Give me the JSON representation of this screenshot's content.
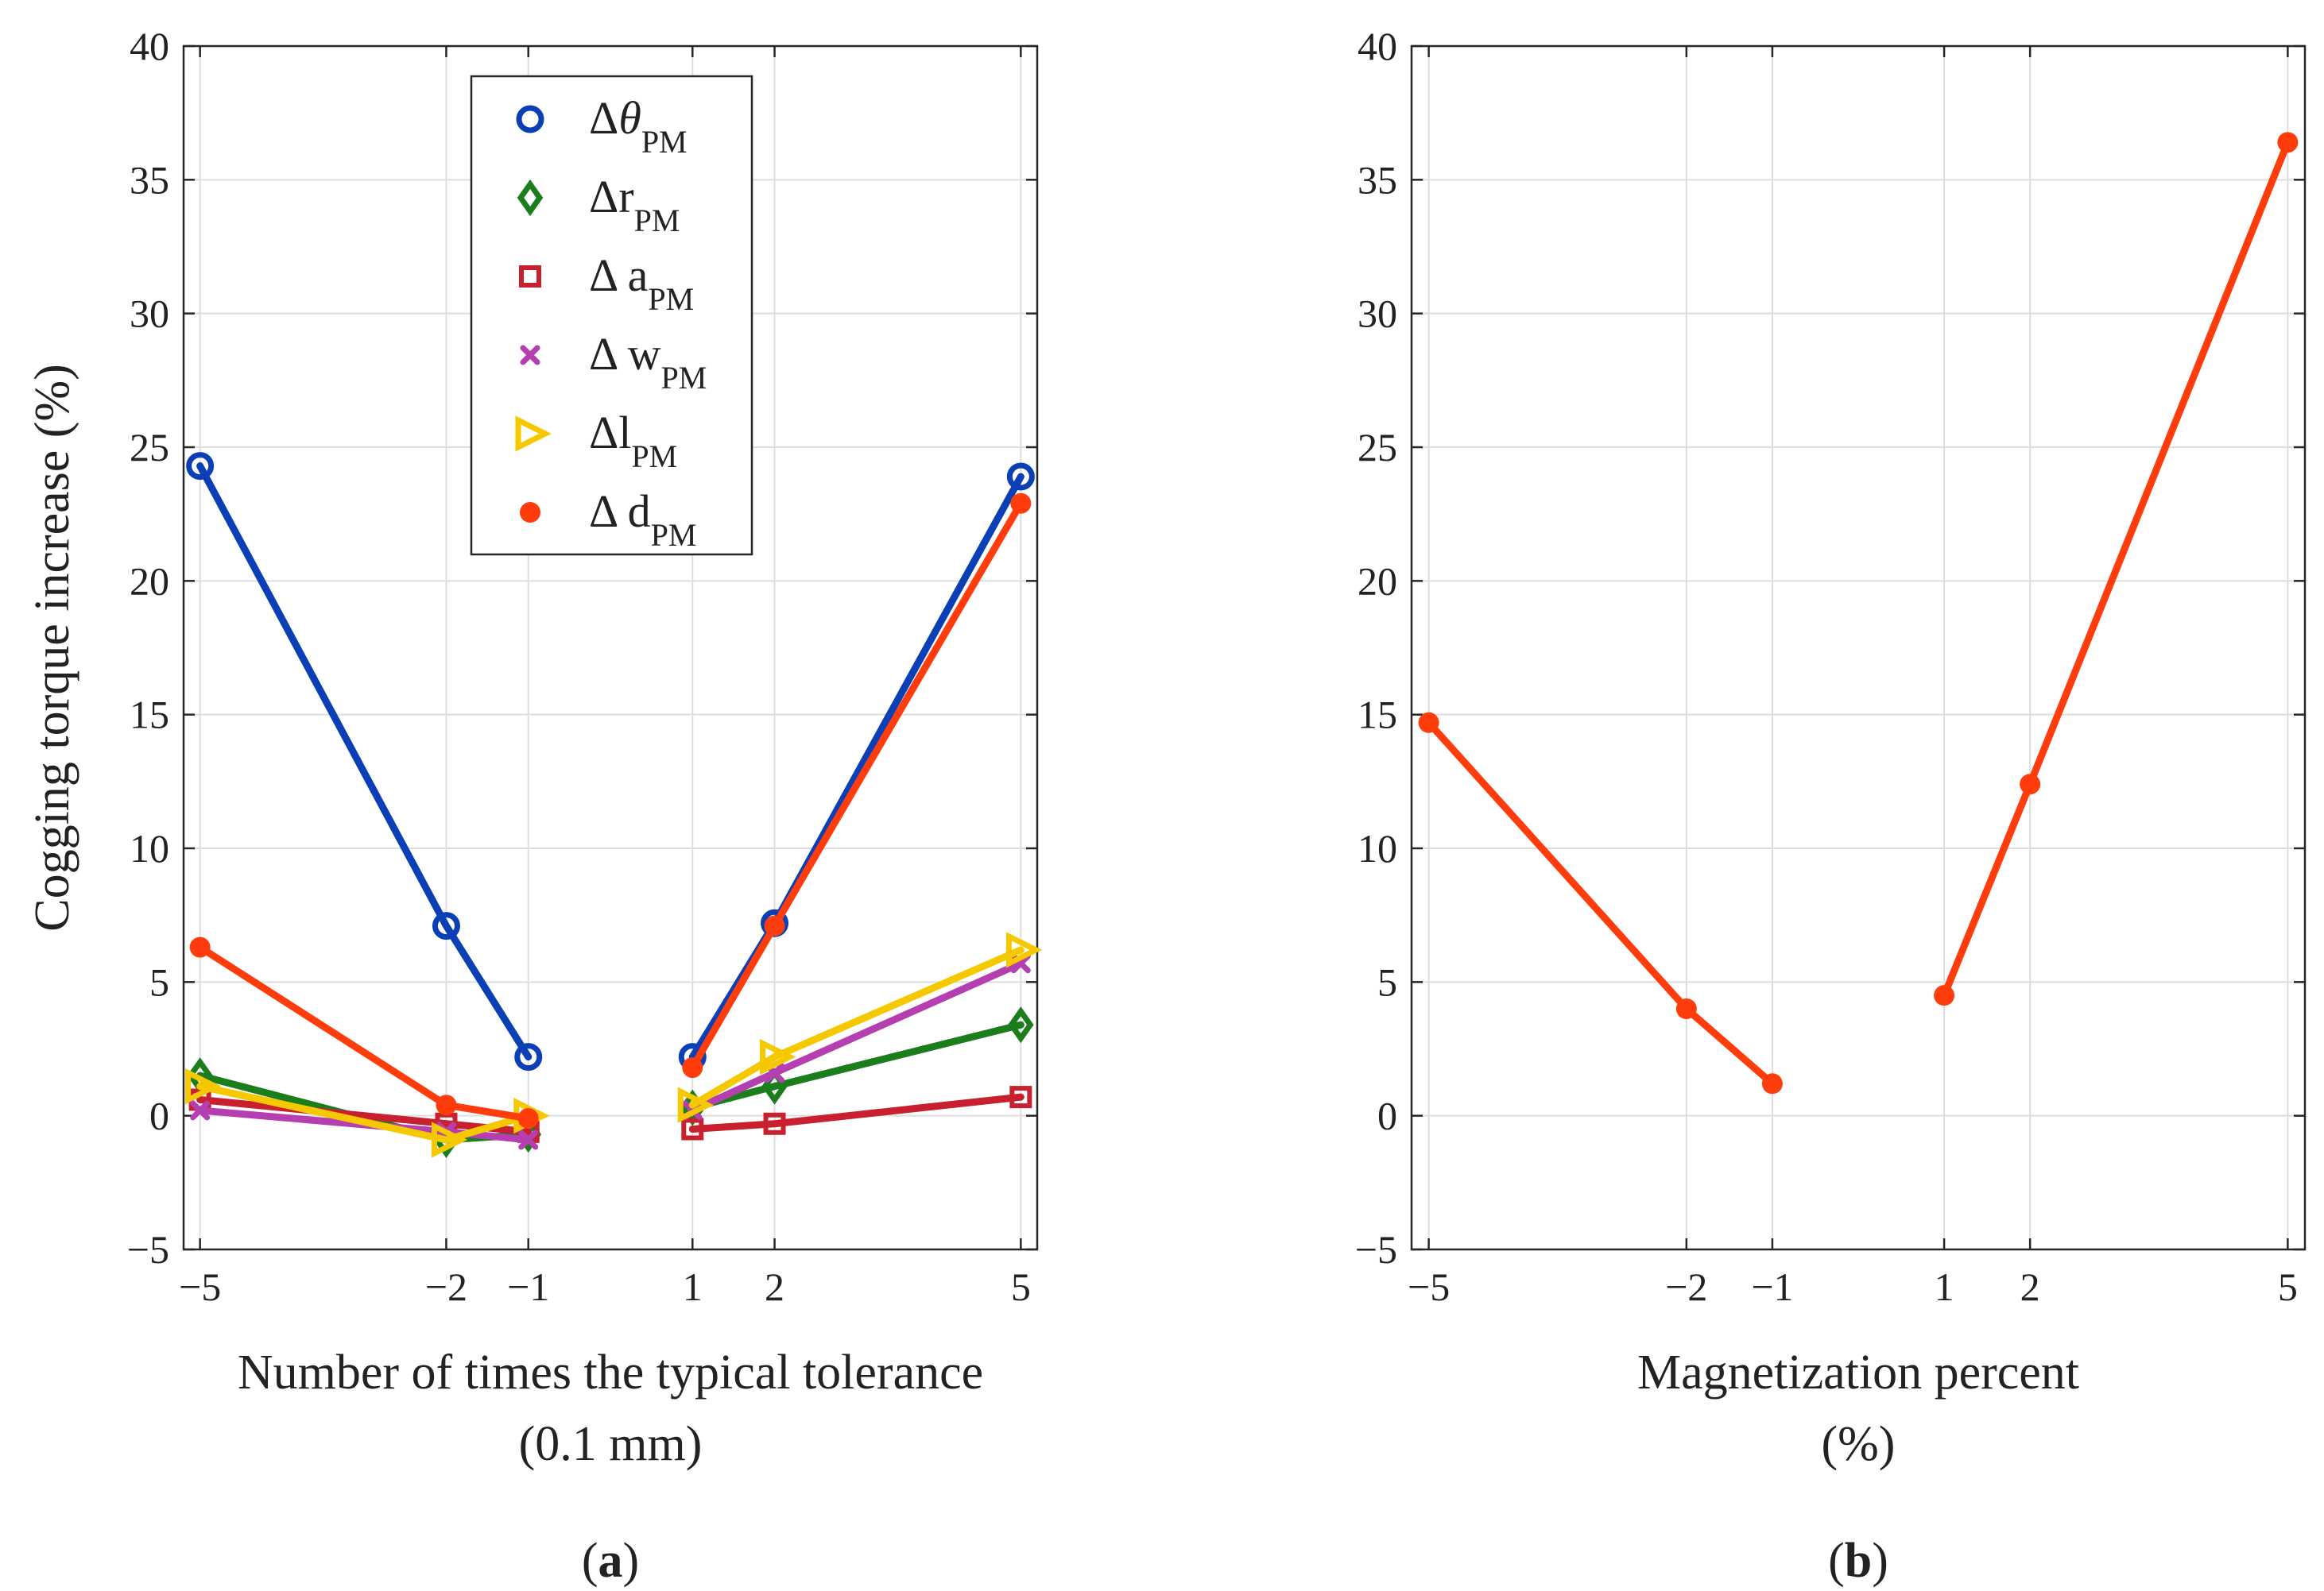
{
  "chart_data": [
    {
      "panel": "a",
      "type": "line",
      "caption_letter": "a",
      "xlabel_line1": "Number of times the typical tolerance",
      "xlabel_line2": "(0.1 mm)",
      "ylabel": "Cogging torque increase (%)",
      "xticks": [
        -5,
        -2,
        -1,
        1,
        2,
        5
      ],
      "xtick_labels": [
        "−5",
        "−2",
        "−1",
        "1",
        "2",
        "5"
      ],
      "yticks": [
        -5,
        0,
        5,
        10,
        15,
        20,
        25,
        30,
        35,
        40
      ],
      "ytick_labels": [
        "−5",
        "0",
        "5",
        "10",
        "15",
        "20",
        "25",
        "30",
        "35",
        "40"
      ],
      "xlim": [
        -5.2,
        5.2
      ],
      "ylim": [
        -5,
        40
      ],
      "grid": true,
      "legend_position": "top-center",
      "series": [
        {
          "name": "Δθ",
          "name_main": "Δθ",
          "name_sub": "PM",
          "marker": "circle",
          "color": "#0b3fb5",
          "negative": {
            "x": [
              -5,
              -2,
              -1
            ],
            "y": [
              24.3,
              7.1,
              2.2
            ]
          },
          "positive": {
            "x": [
              1,
              2,
              5
            ],
            "y": [
              2.2,
              7.2,
              23.9
            ]
          }
        },
        {
          "name": "Δr",
          "name_main": "Δr",
          "name_sub": "PM",
          "marker": "diamond",
          "color": "#1b7d1b",
          "negative": {
            "x": [
              -5,
              -2,
              -1
            ],
            "y": [
              1.5,
              -0.9,
              -0.7
            ]
          },
          "positive": {
            "x": [
              1,
              2,
              5
            ],
            "y": [
              0.3,
              1.1,
              3.4
            ]
          }
        },
        {
          "name": "Δ a",
          "name_main": "Δ a",
          "name_sub": "PM",
          "marker": "square",
          "color": "#c8202f",
          "negative": {
            "x": [
              -5,
              -2,
              -1
            ],
            "y": [
              0.6,
              -0.3,
              -0.6
            ]
          },
          "positive": {
            "x": [
              1,
              2,
              5
            ],
            "y": [
              -0.5,
              -0.3,
              0.7
            ]
          }
        },
        {
          "name": "Δ w",
          "name_main": "Δ w",
          "name_sub": "PM",
          "marker": "x",
          "color": "#b53fb0",
          "negative": {
            "x": [
              -5,
              -2,
              -1
            ],
            "y": [
              0.2,
              -0.6,
              -0.9
            ]
          },
          "positive": {
            "x": [
              1,
              2,
              5
            ],
            "y": [
              0.2,
              1.6,
              5.7
            ]
          }
        },
        {
          "name": "Δl",
          "name_main": "Δl",
          "name_sub": "PM",
          "marker": "triangle-right",
          "color": "#f5c800",
          "negative": {
            "x": [
              -5,
              -2,
              -1
            ],
            "y": [
              1.1,
              -0.9,
              0.0
            ]
          },
          "positive": {
            "x": [
              1,
              2,
              5
            ],
            "y": [
              0.4,
              2.2,
              6.2
            ]
          }
        },
        {
          "name": "Δ d",
          "name_main": "Δ d",
          "name_sub": "PM",
          "marker": "dot",
          "color": "#ff3d0c",
          "negative": {
            "x": [
              -5,
              -2,
              -1
            ],
            "y": [
              6.3,
              0.4,
              -0.1
            ]
          },
          "positive": {
            "x": [
              1,
              2,
              5
            ],
            "y": [
              1.8,
              7.1,
              22.9
            ]
          }
        }
      ]
    },
    {
      "panel": "b",
      "type": "line",
      "caption_letter": "b",
      "xlabel_line1": "Magnetization percent",
      "xlabel_line2": "(%)",
      "ylabel": "",
      "xticks": [
        -5,
        -2,
        -1,
        1,
        2,
        5
      ],
      "xtick_labels": [
        "−5",
        "−2",
        "−1",
        "1",
        "2",
        "5"
      ],
      "yticks": [
        -5,
        0,
        5,
        10,
        15,
        20,
        25,
        30,
        35,
        40
      ],
      "ytick_labels": [
        "−5",
        "0",
        "5",
        "10",
        "15",
        "20",
        "25",
        "30",
        "35",
        "40"
      ],
      "xlim": [
        -5.2,
        5.2
      ],
      "ylim": [
        -5,
        40
      ],
      "grid": true,
      "series": [
        {
          "name": "Magnetization",
          "marker": "dot",
          "color": "#ff3d0c",
          "negative": {
            "x": [
              -5,
              -2,
              -1
            ],
            "y": [
              14.7,
              4.0,
              1.2
            ]
          },
          "positive": {
            "x": [
              1,
              2,
              5
            ],
            "y": [
              4.5,
              12.4,
              36.4
            ]
          }
        }
      ]
    }
  ]
}
